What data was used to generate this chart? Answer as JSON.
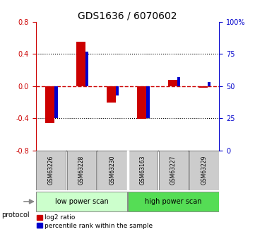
{
  "title": "GDS1636 / 6070602",
  "samples": [
    "GSM63226",
    "GSM63228",
    "GSM63230",
    "GSM63163",
    "GSM63227",
    "GSM63229"
  ],
  "log2_ratio": [
    -0.46,
    0.55,
    -0.2,
    -0.41,
    0.08,
    -0.02
  ],
  "percentile_rank": [
    25,
    77,
    43,
    25,
    57,
    53
  ],
  "ylim_left": [
    -0.8,
    0.8
  ],
  "ylim_right": [
    0,
    100
  ],
  "yticks_left": [
    -0.8,
    -0.4,
    0.0,
    0.4,
    0.8
  ],
  "yticks_right": [
    0,
    25,
    50,
    75,
    100
  ],
  "ytick_labels_right": [
    "0",
    "25",
    "50",
    "75",
    "100%"
  ],
  "red_color": "#cc0000",
  "blue_color": "#0000cc",
  "group1_label": "low power scan",
  "group2_label": "high power scan",
  "group1_color": "#ccffcc",
  "group2_color": "#55dd55",
  "protocol_label": "protocol",
  "legend_red": "log2 ratio",
  "legend_blue": "percentile rank within the sample",
  "sample_box_color": "#cccccc",
  "title_fontsize": 10,
  "tick_fontsize": 7,
  "red_bar_width": 0.3,
  "blue_bar_width": 0.1
}
